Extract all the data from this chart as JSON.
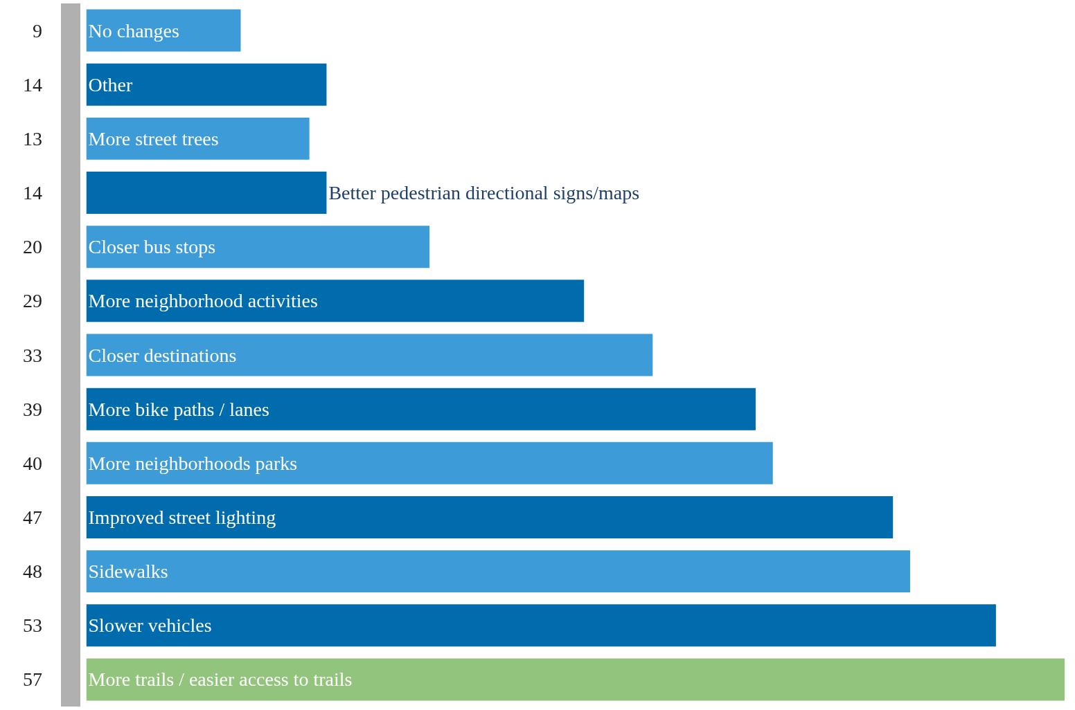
{
  "chart_data": {
    "type": "bar",
    "orientation": "horizontal",
    "categories": [
      "No changes",
      "Other",
      "More street trees",
      "Better pedestrian directional signs/maps",
      "Closer bus stops",
      "More neighborhood activities",
      "Closer destinations",
      "More bike paths / lanes",
      "More neighborhoods parks",
      "Improved street lighting",
      "Sidewalks",
      "Slower vehicles",
      "More trails / easier access to trails"
    ],
    "values": [
      9,
      14,
      13,
      14,
      20,
      29,
      33,
      39,
      40,
      47,
      48,
      53,
      57
    ],
    "colors": [
      "#3d9bd8",
      "#006cad",
      "#3d9bd8",
      "#006cad",
      "#3d9bd8",
      "#006cad",
      "#3d9bd8",
      "#006cad",
      "#3d9bd8",
      "#006cad",
      "#3d9bd8",
      "#006cad",
      "#93c47d"
    ],
    "data_labels": true
  }
}
